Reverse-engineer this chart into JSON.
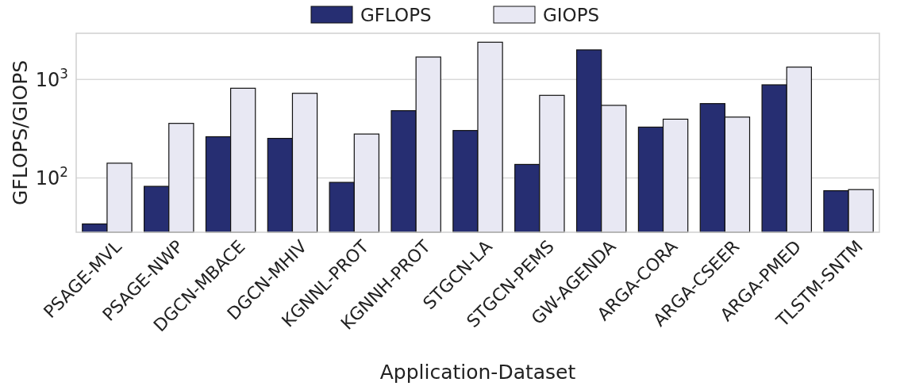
{
  "chart_data": {
    "type": "bar",
    "xlabel": "Application-Dataset",
    "ylabel": "GFLOPS/GIOPS",
    "categories": [
      "PSAGE-MVL",
      "PSAGE-NWP",
      "DGCN-MBACE",
      "DGCN-MHIV",
      "KGNNL-PROT",
      "KGNNH-PROT",
      "STGCN-LA",
      "STGCN-PEMS",
      "GW-AGENDA",
      "ARGA-CORA",
      "ARGA-CSEER",
      "ARGA-PMED",
      "TLSTM-SNTM"
    ],
    "series": [
      {
        "name": "GFLOPS",
        "color": "#262e72",
        "values": [
          34,
          82,
          262,
          252,
          90,
          482,
          303,
          137,
          2000,
          328,
          569,
          883,
          74
        ]
      },
      {
        "name": "GIOPS",
        "color": "#e8e8f3",
        "values": [
          141,
          358,
          815,
          724,
          279,
          1692,
          2393,
          690,
          546,
          395,
          415,
          1337,
          76
        ]
      }
    ],
    "log": true,
    "ylim": [
      28,
      2950
    ],
    "yticks": [
      {
        "value": 100,
        "label": "10$^{2}$"
      },
      {
        "value": 1000,
        "label": "10$^{3}$"
      }
    ],
    "grid": "y",
    "legend": "top"
  }
}
